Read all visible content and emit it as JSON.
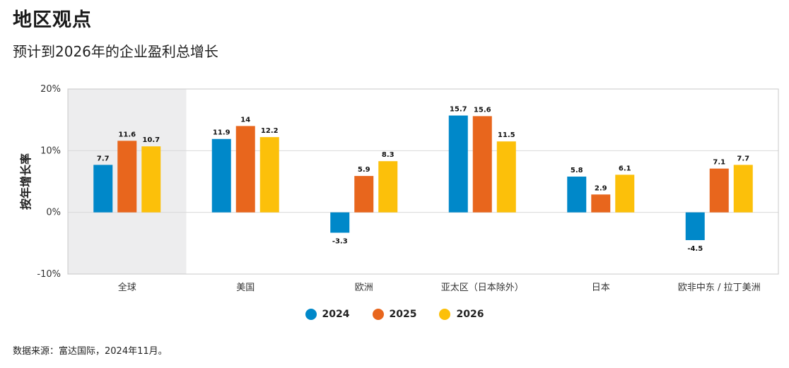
{
  "header": {
    "title": "地区观点",
    "subtitle": "预计到2026年的企业盈利总增长"
  },
  "footer": {
    "source": "数据来源：富达国际，2024年11月。"
  },
  "colors": {
    "2024": "#0088c9",
    "2025": "#e8661d",
    "2026": "#fcc00a",
    "highlight_band": "#ededee",
    "grid": "#d9d9d9",
    "frame": "#c8c8c8"
  },
  "chart_data": {
    "type": "bar",
    "title": "",
    "xlabel": "",
    "ylabel": "按年增长率",
    "ylim": [
      -10,
      20
    ],
    "yticks": [
      -10,
      0,
      10,
      20
    ],
    "ytick_labels": [
      "-10%",
      "0%",
      "10%",
      "20%"
    ],
    "grid": true,
    "legend_position": "bottom-center",
    "highlighted_category": "全球",
    "categories": [
      "全球",
      "美国",
      "欧洲",
      "亚太区（日本除外）",
      "日本",
      "欧非中东 / 拉丁美洲"
    ],
    "series": [
      {
        "name": "2024",
        "values": [
          7.7,
          11.9,
          -3.3,
          15.7,
          5.8,
          -4.5
        ]
      },
      {
        "name": "2025",
        "values": [
          11.6,
          14,
          5.9,
          15.6,
          2.9,
          7.1
        ]
      },
      {
        "name": "2026",
        "values": [
          10.7,
          12.2,
          8.3,
          11.5,
          6.1,
          7.7
        ]
      }
    ]
  }
}
